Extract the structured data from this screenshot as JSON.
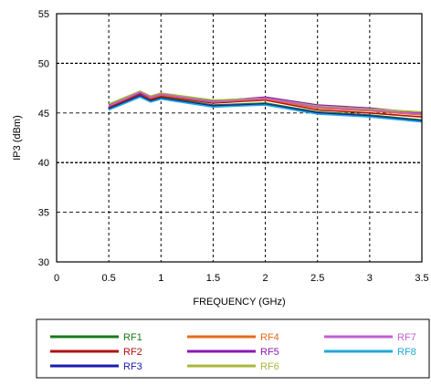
{
  "chart_data": {
    "type": "line",
    "xlabel": "FREQUENCY (GHz)",
    "ylabel": "IP3 (dBm)",
    "xlim": [
      0,
      3.5
    ],
    "ylim": [
      30,
      55
    ],
    "x_ticks": [
      "0",
      "0.5",
      "1",
      "1.5",
      "2",
      "2.5",
      "3",
      "3.5"
    ],
    "x_tick_values": [
      0,
      0.5,
      1,
      1.5,
      2,
      2.5,
      3,
      3.5
    ],
    "y_ticks": [
      "30",
      "35",
      "40",
      "45",
      "50",
      "55"
    ],
    "y_tick_values": [
      30,
      35,
      40,
      45,
      50,
      55
    ],
    "grid": true,
    "grid_style": "dashed",
    "legend_position": "bottom",
    "x": [
      0.5,
      0.8,
      0.9,
      1.0,
      1.5,
      2.0,
      2.5,
      3.0,
      3.5
    ],
    "series": [
      {
        "name": "RF1",
        "color": "#1a7a1a",
        "values": [
          45.5,
          46.8,
          46.3,
          46.6,
          45.8,
          46.0,
          45.1,
          44.8,
          44.3
        ]
      },
      {
        "name": "RF2",
        "color": "#b01010",
        "values": [
          45.6,
          46.9,
          46.4,
          46.7,
          46.0,
          46.3,
          45.3,
          45.0,
          44.6
        ]
      },
      {
        "name": "RF3",
        "color": "#1a1ab0",
        "values": [
          45.4,
          46.7,
          46.2,
          46.5,
          45.7,
          45.9,
          45.0,
          44.7,
          44.2
        ]
      },
      {
        "name": "RF4",
        "color": "#e86a1a",
        "values": [
          45.7,
          47.0,
          46.5,
          46.8,
          46.1,
          46.4,
          45.5,
          45.2,
          44.8
        ]
      },
      {
        "name": "RF5",
        "color": "#8a1ab0",
        "values": [
          45.8,
          47.0,
          46.6,
          46.9,
          46.2,
          46.6,
          45.8,
          45.5,
          45.0
        ]
      },
      {
        "name": "RF6",
        "color": "#a8b83a",
        "values": [
          45.9,
          47.2,
          46.7,
          47.0,
          46.3,
          46.5,
          45.7,
          45.4,
          45.1
        ]
      },
      {
        "name": "RF7",
        "color": "#c060d0",
        "values": [
          45.7,
          47.1,
          46.6,
          46.9,
          46.1,
          46.5,
          45.6,
          45.3,
          44.9
        ]
      },
      {
        "name": "RF8",
        "color": "#20a8d8",
        "values": [
          45.3,
          46.6,
          46.1,
          46.4,
          45.6,
          45.8,
          44.9,
          44.6,
          44.1
        ]
      }
    ]
  }
}
